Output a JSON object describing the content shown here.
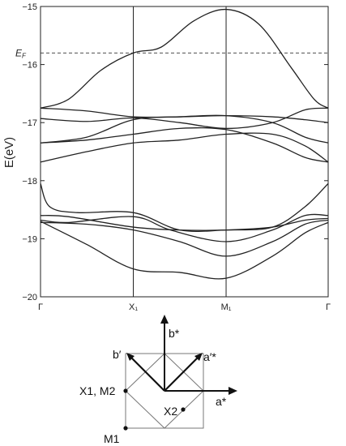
{
  "chart_data": {
    "type": "line",
    "title": "",
    "ylabel": "E(eV)",
    "ylim": [
      -20,
      -15
    ],
    "yticks": [
      -15,
      -16,
      -17,
      -18,
      -19,
      -20
    ],
    "ytick_labels": [
      "−15",
      "−16",
      "−17",
      "−18",
      "−19",
      "−20"
    ],
    "k_points": [
      "Γ",
      "X₁",
      "M₁",
      "Γ"
    ],
    "k_positions": [
      0,
      1,
      2,
      3.1
    ],
    "fermi_level": {
      "label": "E",
      "subscript": "F",
      "value": -15.8
    },
    "grid": false,
    "bands": [
      {
        "points": [
          [
            0,
            -16.75
          ],
          [
            0.3,
            -16.6
          ],
          [
            0.65,
            -16.1
          ],
          [
            1,
            -15.8
          ],
          [
            1.3,
            -15.7
          ],
          [
            1.65,
            -15.25
          ],
          [
            2,
            -15.05
          ],
          [
            2.35,
            -15.3
          ],
          [
            2.7,
            -16.05
          ],
          [
            2.95,
            -16.6
          ],
          [
            3.1,
            -16.75
          ]
        ]
      },
      {
        "points": [
          [
            0,
            -16.75
          ],
          [
            0.5,
            -16.8
          ],
          [
            1,
            -16.9
          ],
          [
            1.5,
            -16.9
          ],
          [
            2,
            -16.88
          ],
          [
            2.5,
            -16.9
          ],
          [
            2.85,
            -16.95
          ],
          [
            3.1,
            -17.0
          ]
        ]
      },
      {
        "points": [
          [
            0,
            -16.93
          ],
          [
            0.5,
            -16.98
          ],
          [
            1,
            -16.92
          ],
          [
            1.5,
            -17.0
          ],
          [
            2,
            -17.1
          ],
          [
            2.5,
            -17.0
          ],
          [
            2.85,
            -16.78
          ],
          [
            3.1,
            -16.75
          ]
        ]
      },
      {
        "points": [
          [
            0,
            -17.35
          ],
          [
            0.5,
            -17.25
          ],
          [
            1,
            -16.95
          ],
          [
            1.5,
            -16.9
          ],
          [
            2,
            -16.88
          ],
          [
            2.5,
            -17.0
          ],
          [
            2.85,
            -17.25
          ],
          [
            3.1,
            -17.35
          ]
        ]
      },
      {
        "points": [
          [
            0,
            -17.35
          ],
          [
            0.5,
            -17.3
          ],
          [
            1,
            -17.2
          ],
          [
            1.5,
            -17.1
          ],
          [
            2,
            -17.12
          ],
          [
            2.5,
            -17.35
          ],
          [
            2.85,
            -17.6
          ],
          [
            3.1,
            -17.68
          ]
        ]
      },
      {
        "points": [
          [
            0,
            -17.68
          ],
          [
            0.5,
            -17.5
          ],
          [
            1,
            -17.35
          ],
          [
            1.5,
            -17.3
          ],
          [
            2,
            -17.2
          ],
          [
            2.5,
            -17.2
          ],
          [
            2.85,
            -17.4
          ],
          [
            3.1,
            -17.68
          ]
        ]
      },
      {
        "points": [
          [
            0,
            -18.05
          ],
          [
            0.1,
            -18.45
          ],
          [
            0.4,
            -18.55
          ],
          [
            1,
            -18.55
          ],
          [
            1.5,
            -18.85
          ],
          [
            2,
            -18.85
          ],
          [
            2.5,
            -18.8
          ],
          [
            2.85,
            -18.45
          ],
          [
            3.1,
            -18.05
          ]
        ]
      },
      {
        "points": [
          [
            0,
            -18.6
          ],
          [
            0.3,
            -18.62
          ],
          [
            1,
            -18.8
          ],
          [
            1.5,
            -18.85
          ],
          [
            2,
            -18.85
          ],
          [
            2.5,
            -18.8
          ],
          [
            2.85,
            -18.68
          ],
          [
            3.1,
            -18.65
          ]
        ]
      },
      {
        "points": [
          [
            0,
            -18.68
          ],
          [
            0.3,
            -18.72
          ],
          [
            1,
            -18.62
          ],
          [
            1.4,
            -18.85
          ],
          [
            2,
            -19.05
          ],
          [
            2.5,
            -18.85
          ],
          [
            2.85,
            -18.6
          ],
          [
            3.1,
            -18.6
          ]
        ]
      },
      {
        "points": [
          [
            0,
            -18.72
          ],
          [
            0.5,
            -18.75
          ],
          [
            1,
            -18.85
          ],
          [
            1.5,
            -19.05
          ],
          [
            2,
            -19.3
          ],
          [
            2.5,
            -19.05
          ],
          [
            2.85,
            -18.75
          ],
          [
            3.1,
            -18.68
          ]
        ]
      },
      {
        "points": [
          [
            0,
            -18.7
          ],
          [
            0.5,
            -19.1
          ],
          [
            1,
            -19.52
          ],
          [
            1.5,
            -19.58
          ],
          [
            2,
            -19.68
          ],
          [
            2.5,
            -19.3
          ],
          [
            2.85,
            -18.9
          ],
          [
            3.1,
            -18.72
          ]
        ]
      }
    ],
    "legend": "none"
  },
  "reciprocal_diagram": {
    "vectors": [
      {
        "name": "a*",
        "label": "a*"
      },
      {
        "name": "b*",
        "label": "b*"
      },
      {
        "name": "a-prime-star",
        "label": "a′*"
      },
      {
        "name": "b-prime",
        "label": "b′"
      }
    ],
    "points": [
      {
        "name": "X1-M2",
        "label": "X1, M2"
      },
      {
        "name": "X2",
        "label": "X2"
      },
      {
        "name": "M1",
        "label": "M1"
      }
    ]
  }
}
